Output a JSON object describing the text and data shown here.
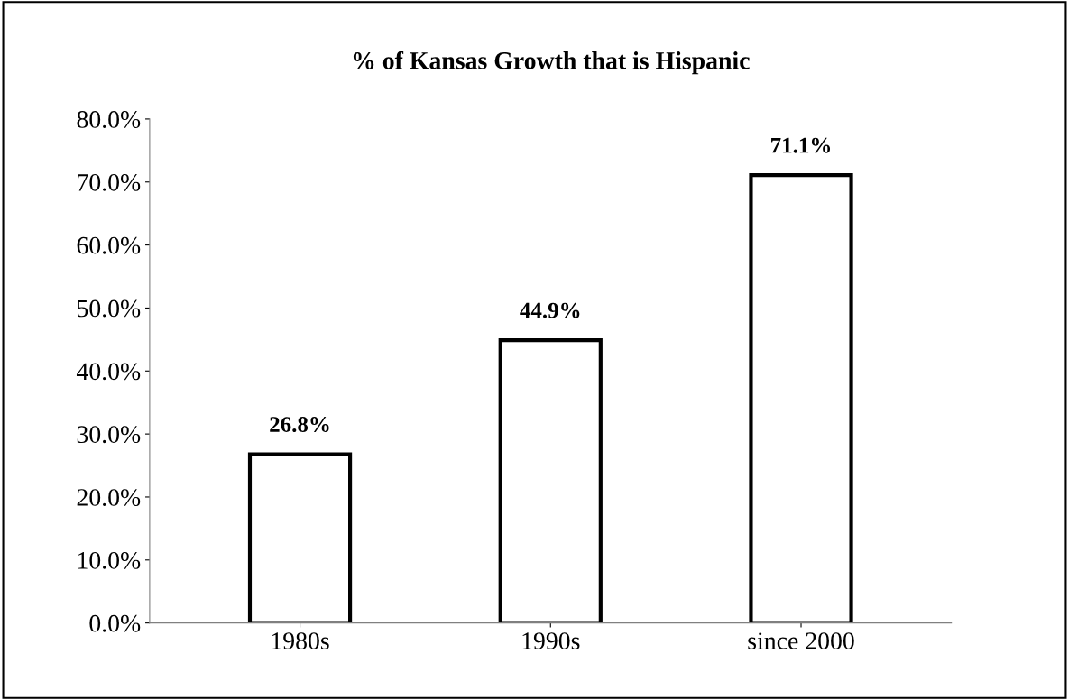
{
  "chart_data": {
    "type": "bar",
    "title": "% of Kansas Growth that is Hispanic",
    "categories": [
      "1980s",
      "1990s",
      "since 2000"
    ],
    "values": [
      26.8,
      44.9,
      71.1
    ],
    "value_labels": [
      "26.8%",
      "44.9%",
      "71.1%"
    ],
    "color": "#ffffff",
    "ylim": [
      0,
      80
    ],
    "yticks": [
      {
        "value": 0,
        "label": "0.0%"
      },
      {
        "value": 10,
        "label": "10.0%"
      },
      {
        "value": 20,
        "label": "20.0%"
      },
      {
        "value": 30,
        "label": "30.0%"
      },
      {
        "value": 40,
        "label": "40.0%"
      },
      {
        "value": 50,
        "label": "50.0%"
      },
      {
        "value": 60,
        "label": "60.0%"
      },
      {
        "value": 70,
        "label": "70.0%"
      },
      {
        "value": 80,
        "label": "80.0%"
      }
    ],
    "grid": false,
    "legend": false
  }
}
